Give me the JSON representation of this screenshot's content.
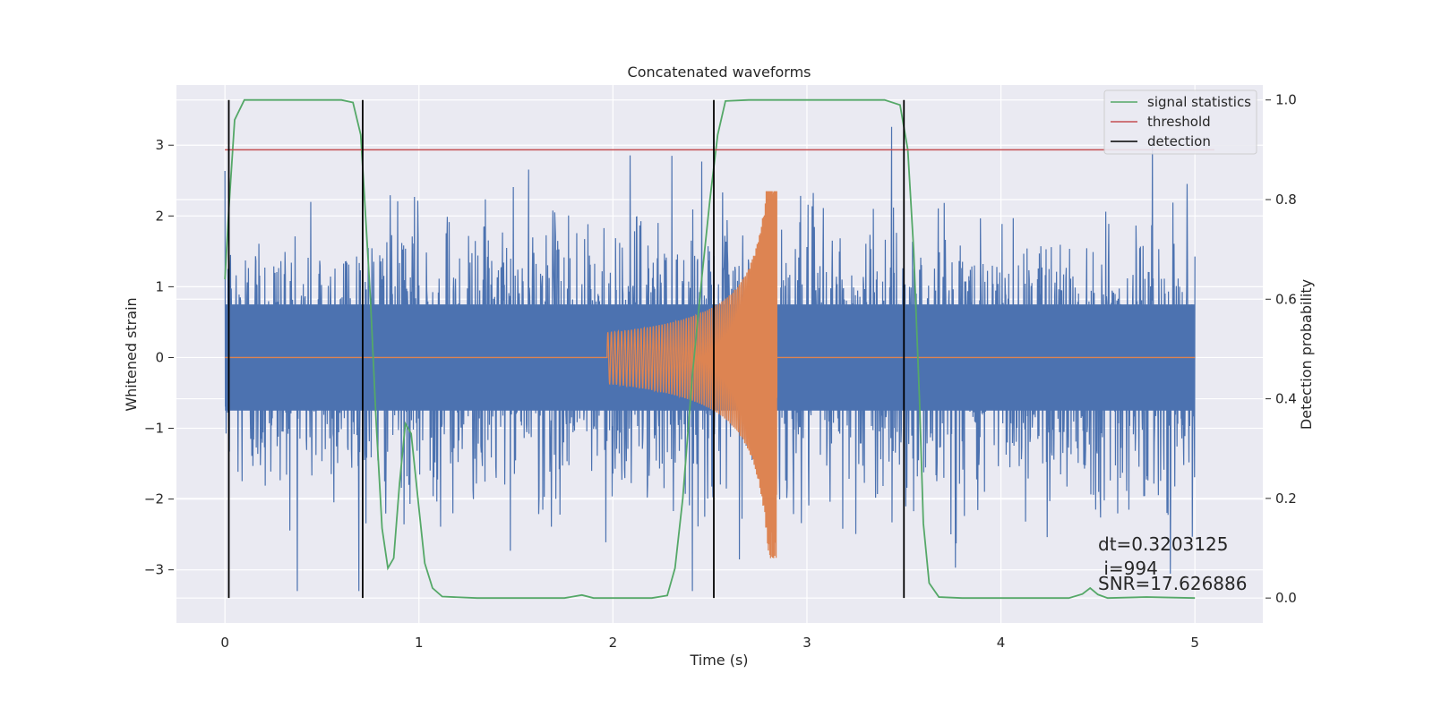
{
  "chart_data": {
    "type": "line",
    "title": "Concatenated waveforms",
    "xlabel": "Time (s)",
    "ylabel": "Whitened strain",
    "y2label": "Detection probability",
    "xlim": [
      -0.25,
      5.35
    ],
    "ylim": [
      -3.75,
      3.85
    ],
    "y2lim": [
      -0.05,
      1.03
    ],
    "x_ticks": [
      0,
      1,
      2,
      3,
      4,
      5
    ],
    "y_ticks": [
      -3,
      -2,
      -1,
      0,
      1,
      2,
      3
    ],
    "y2_ticks": [
      0.0,
      0.2,
      0.4,
      0.6,
      0.8,
      1.0
    ],
    "y2_tick_labels": [
      "0.0",
      "0.2",
      "0.4",
      "0.6",
      "0.8",
      "1.0"
    ],
    "y_tick_labels": [
      "−3",
      "−2",
      "−1",
      "0",
      "1",
      "2",
      "3"
    ],
    "grid": true,
    "legend_position": "top-right",
    "colors": {
      "strain": "#4c72b0",
      "injection": "#dd8452",
      "signal_statistics": "#55a868",
      "threshold": "#c44e52",
      "detection": "#000000",
      "background": "#eaeaf2",
      "grid": "#ffffff"
    },
    "series": [
      {
        "name": "signal statistics",
        "axis": "right",
        "points": [
          [
            0.0,
            0.64
          ],
          [
            0.02,
            0.78
          ],
          [
            0.05,
            0.96
          ],
          [
            0.1,
            1.0
          ],
          [
            0.3,
            1.0
          ],
          [
            0.5,
            1.0
          ],
          [
            0.6,
            1.0
          ],
          [
            0.66,
            0.995
          ],
          [
            0.7,
            0.93
          ],
          [
            0.72,
            0.8
          ],
          [
            0.75,
            0.6
          ],
          [
            0.78,
            0.35
          ],
          [
            0.81,
            0.14
          ],
          [
            0.84,
            0.06
          ],
          [
            0.87,
            0.08
          ],
          [
            0.9,
            0.23
          ],
          [
            0.93,
            0.35
          ],
          [
            0.96,
            0.33
          ],
          [
            1.0,
            0.18
          ],
          [
            1.03,
            0.07
          ],
          [
            1.07,
            0.02
          ],
          [
            1.12,
            0.003
          ],
          [
            1.3,
            0.0
          ],
          [
            1.75,
            0.0
          ],
          [
            1.84,
            0.006
          ],
          [
            1.9,
            0.0
          ],
          [
            2.2,
            0.0
          ],
          [
            2.28,
            0.005
          ],
          [
            2.32,
            0.06
          ],
          [
            2.36,
            0.2
          ],
          [
            2.41,
            0.45
          ],
          [
            2.46,
            0.65
          ],
          [
            2.5,
            0.8
          ],
          [
            2.54,
            0.93
          ],
          [
            2.58,
            0.998
          ],
          [
            2.7,
            1.0
          ],
          [
            3.4,
            1.0
          ],
          [
            3.48,
            0.99
          ],
          [
            3.52,
            0.9
          ],
          [
            3.55,
            0.7
          ],
          [
            3.58,
            0.4
          ],
          [
            3.6,
            0.15
          ],
          [
            3.63,
            0.03
          ],
          [
            3.68,
            0.002
          ],
          [
            3.8,
            0.0
          ],
          [
            4.35,
            0.0
          ],
          [
            4.42,
            0.008
          ],
          [
            4.46,
            0.02
          ],
          [
            4.5,
            0.007
          ],
          [
            4.55,
            0.0
          ],
          [
            4.75,
            0.002
          ],
          [
            5.0,
            0.0
          ]
        ]
      },
      {
        "name": "threshold",
        "axis": "right",
        "points": [
          [
            0.0,
            0.9
          ],
          [
            5.1,
            0.9
          ]
        ]
      },
      {
        "name": "detection",
        "axis": "right",
        "type": "vlines",
        "x": [
          0.02,
          0.71,
          2.52,
          3.5
        ],
        "range": [
          0.0,
          1.0
        ]
      },
      {
        "axis": "left",
        "label": "whitened strain (noise)",
        "description": "dense noise, peaks mostly within ±2.6, occasional spikes to ±3.3, visually dense band ±0.75",
        "x_range": [
          0.0,
          5.0
        ]
      },
      {
        "axis": "left",
        "label": "injected chirp",
        "description": "zero outside 2.0–2.85 s; chirp amplitude grows from ~0.35 at 2.0 s to ~2.35 / −3.05 peak at ~2.84 s",
        "x_range": [
          1.97,
          2.85
        ]
      }
    ],
    "annotations": {
      "dt": "dt=0.3203125",
      "i": " i=994",
      "snr": "SNR=17.626886"
    }
  }
}
